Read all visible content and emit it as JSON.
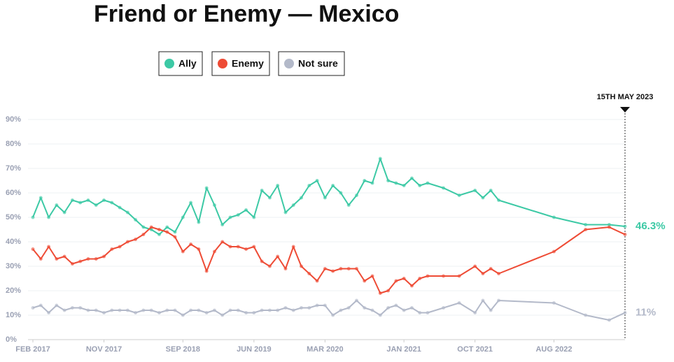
{
  "chart_data": {
    "type": "line",
    "title": "Friend or Enemy — Mexico",
    "x": [
      "2017-02",
      "2017-03",
      "2017-04",
      "2017-05",
      "2017-06",
      "2017-07",
      "2017-08",
      "2017-09",
      "2017-10",
      "2017-11",
      "2017-12",
      "2018-01",
      "2018-02",
      "2018-03",
      "2018-04",
      "2018-05",
      "2018-06",
      "2018-07",
      "2018-08",
      "2018-09",
      "2018-10",
      "2018-11",
      "2018-12",
      "2019-01",
      "2019-02",
      "2019-03",
      "2019-04",
      "2019-05",
      "2019-06",
      "2019-07",
      "2019-08",
      "2019-09",
      "2019-10",
      "2019-11",
      "2019-12",
      "2020-01",
      "2020-02",
      "2020-03",
      "2020-04",
      "2020-05",
      "2020-06",
      "2020-07",
      "2020-08",
      "2020-09",
      "2020-10",
      "2020-11",
      "2020-12",
      "2021-01",
      "2021-02",
      "2021-03",
      "2021-04",
      "2021-06",
      "2021-08",
      "2021-10",
      "2021-11",
      "2021-12",
      "2022-01",
      "2022-08",
      "2022-12",
      "2023-03",
      "2023-05"
    ],
    "series": [
      {
        "name": "Ally",
        "color": "#3cc9a5",
        "values": [
          50,
          58,
          50,
          55,
          52,
          57,
          56,
          57,
          55,
          57,
          56,
          54,
          52,
          49,
          46,
          45,
          43,
          46,
          44,
          50,
          56,
          48,
          62,
          55,
          47,
          50,
          51,
          53,
          50,
          61,
          58,
          63,
          52,
          55,
          58,
          63,
          65,
          58,
          63,
          60,
          55,
          59,
          65,
          64,
          74,
          65,
          64,
          63,
          66,
          63,
          64,
          62,
          59,
          61,
          58,
          61,
          57,
          50,
          47,
          47,
          46.3
        ],
        "value_labels": [
          null,
          null,
          null,
          null,
          null,
          null,
          null,
          null,
          null,
          null,
          null,
          null,
          null,
          null,
          null,
          null,
          null,
          null,
          null,
          null,
          null,
          null,
          null,
          null,
          null,
          null,
          null,
          null,
          null,
          null,
          null,
          null,
          null,
          null,
          null,
          null,
          null,
          null,
          null,
          null,
          null,
          null,
          null,
          null,
          null,
          null,
          null,
          null,
          null,
          null,
          null,
          null,
          null,
          null,
          null,
          null,
          null,
          null,
          null,
          null,
          "46.3%"
        ]
      },
      {
        "name": "Enemy",
        "color": "#ee4b35",
        "values": [
          37,
          33,
          38,
          33,
          34,
          31,
          32,
          33,
          33,
          34,
          37,
          38,
          40,
          41,
          43,
          46,
          45,
          44,
          42,
          36,
          39,
          37,
          28,
          36,
          40,
          38,
          38,
          37,
          38,
          32,
          30,
          34,
          29,
          38,
          30,
          27,
          24,
          29,
          28,
          29,
          29,
          29,
          24,
          26,
          19,
          20,
          24,
          25,
          22,
          25,
          26,
          26,
          26,
          30,
          27,
          29,
          27,
          36,
          45,
          46,
          43
        ]
      },
      {
        "name": "Not sure",
        "color": "#b3b9c9",
        "values": [
          13,
          14,
          11,
          14,
          12,
          13,
          13,
          12,
          12,
          11,
          12,
          12,
          12,
          11,
          12,
          12,
          11,
          12,
          12,
          10,
          12,
          12,
          11,
          12,
          10,
          12,
          12,
          11,
          11,
          12,
          12,
          12,
          13,
          12,
          13,
          13,
          14,
          14,
          10,
          12,
          13,
          16,
          13,
          12,
          10,
          13,
          14,
          12,
          13,
          11,
          11,
          13,
          15,
          11,
          16,
          12,
          16,
          15,
          10,
          8,
          11
        ],
        "value_labels": [
          null,
          null,
          null,
          null,
          null,
          null,
          null,
          null,
          null,
          null,
          null,
          null,
          null,
          null,
          null,
          null,
          null,
          null,
          null,
          null,
          null,
          null,
          null,
          null,
          null,
          null,
          null,
          null,
          null,
          null,
          null,
          null,
          null,
          null,
          null,
          null,
          null,
          null,
          null,
          null,
          null,
          null,
          null,
          null,
          null,
          null,
          null,
          null,
          null,
          null,
          null,
          null,
          null,
          null,
          null,
          null,
          null,
          null,
          null,
          null,
          "11%"
        ]
      }
    ],
    "xlim": [
      "2017-02",
      "2023-05"
    ],
    "xticks": [
      {
        "value": "2017-02",
        "label": "FEB 2017"
      },
      {
        "value": "2017-11",
        "label": "NOV 2017"
      },
      {
        "value": "2018-09",
        "label": "SEP 2018"
      },
      {
        "value": "2019-06",
        "label": "JUN 2019"
      },
      {
        "value": "2020-03",
        "label": "MAR 2020"
      },
      {
        "value": "2021-01",
        "label": "JAN 2021"
      },
      {
        "value": "2021-10",
        "label": "OCT 2021"
      },
      {
        "value": "2022-08",
        "label": "AUG 2022"
      }
    ],
    "ylim": [
      0,
      90
    ],
    "yticks": [
      {
        "value": 0,
        "label": "0%"
      },
      {
        "value": 10,
        "label": "10%"
      },
      {
        "value": 20,
        "label": "20%"
      },
      {
        "value": 30,
        "label": "30%"
      },
      {
        "value": 40,
        "label": "40%"
      },
      {
        "value": 50,
        "label": "50%"
      },
      {
        "value": 60,
        "label": "60%"
      },
      {
        "value": 70,
        "label": "70%"
      },
      {
        "value": 80,
        "label": "80%"
      },
      {
        "value": 90,
        "label": "90%"
      }
    ],
    "grid": true,
    "annotation": {
      "label": "15TH MAY 2023",
      "x": "2023-05"
    }
  }
}
